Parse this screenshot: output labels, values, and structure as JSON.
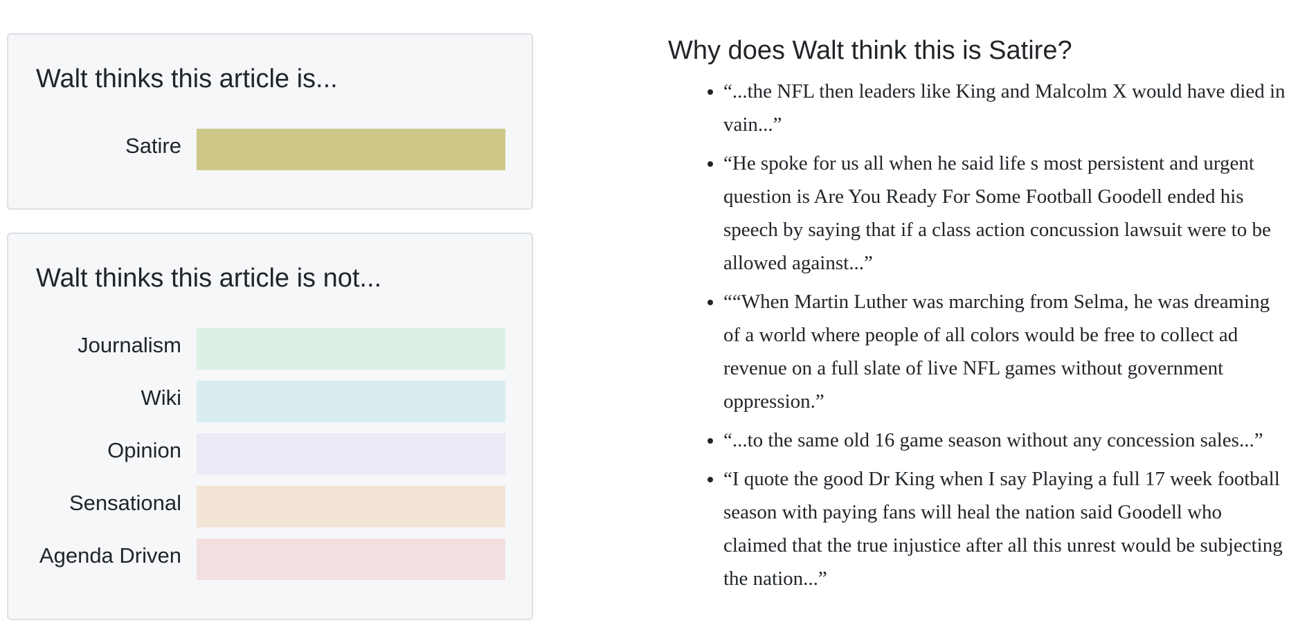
{
  "cards": {
    "is": {
      "title": "Walt thinks this article is...",
      "items": [
        {
          "label": "Satire",
          "color": "#cdc888"
        }
      ]
    },
    "not": {
      "title": "Walt thinks this article is not...",
      "items": [
        {
          "label": "Journalism",
          "color": "#daf1e4"
        },
        {
          "label": "Wiki",
          "color": "#d9edf0"
        },
        {
          "label": "Opinion",
          "color": "#eee9f6"
        },
        {
          "label": "Sensational",
          "color": "#f2e5d6"
        },
        {
          "label": "Agenda Driven",
          "color": "#f2e0e0"
        }
      ]
    }
  },
  "reasons": {
    "title": "Why does Walt think this is Satire?",
    "items": [
      "“...the NFL then leaders like King and Malcolm X would have died in vain...”",
      "“He spoke for us all when he said life s most persistent and urgent question is Are You Ready For Some Football Goodell ended his speech by saying that if a class action concussion lawsuit were to be allowed against...”",
      "““When Martin Luther was marching from Selma, he was dreaming of a world where people of all colors would be free to collect ad revenue on a full slate of live NFL games without government oppression.”",
      "“...to the same old 16 game season without any concession sales...”",
      "“I quote the good Dr King when I say Playing a full 17 week football season with paying fans will heal the nation said Goodell who claimed that the true injustice after all this unrest would be subjecting the nation...”"
    ]
  }
}
